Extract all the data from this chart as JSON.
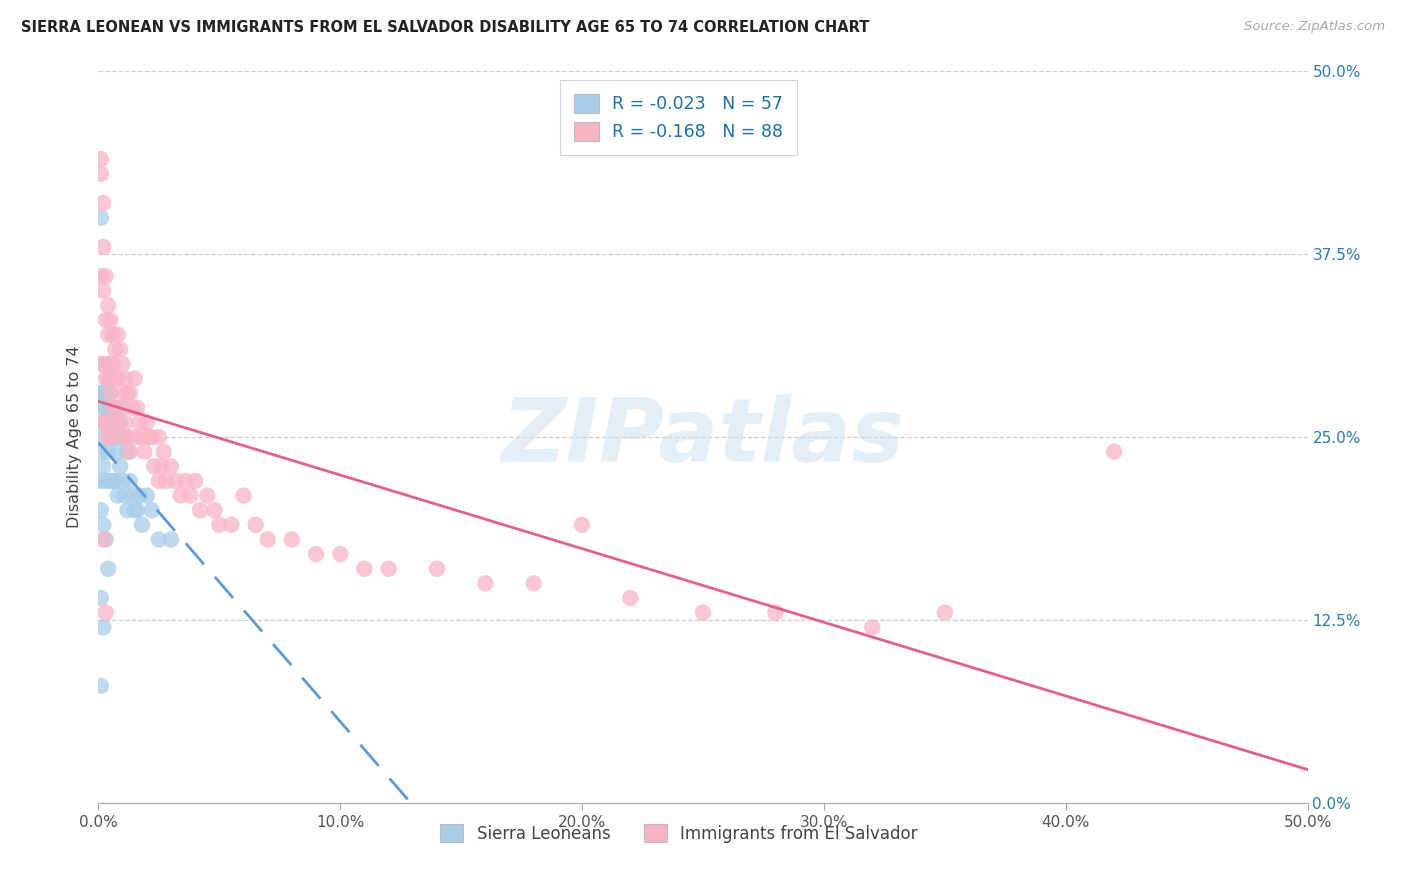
{
  "title": "SIERRA LEONEAN VS IMMIGRANTS FROM EL SALVADOR DISABILITY AGE 65 TO 74 CORRELATION CHART",
  "source": "Source: ZipAtlas.com",
  "ylabel": "Disability Age 65 to 74",
  "xlim": [
    0,
    0.5
  ],
  "ylim": [
    0,
    0.5
  ],
  "color_blue": "#a8cce8",
  "color_pink": "#f9b4c4",
  "color_blue_line": "#5b9bd5",
  "color_pink_line": "#e85d8a",
  "legend_r1": "-0.023",
  "legend_n1": "57",
  "legend_r2": "-0.168",
  "legend_n2": "88",
  "watermark": "ZIPatlas",
  "sl_x": [
    0.001,
    0.001,
    0.001,
    0.001,
    0.001,
    0.002,
    0.002,
    0.002,
    0.002,
    0.002,
    0.003,
    0.003,
    0.003,
    0.003,
    0.004,
    0.004,
    0.004,
    0.004,
    0.005,
    0.005,
    0.005,
    0.005,
    0.005,
    0.006,
    0.006,
    0.006,
    0.007,
    0.007,
    0.007,
    0.008,
    0.008,
    0.008,
    0.009,
    0.009,
    0.01,
    0.01,
    0.01,
    0.011,
    0.011,
    0.012,
    0.012,
    0.013,
    0.014,
    0.015,
    0.016,
    0.017,
    0.018,
    0.02,
    0.022,
    0.025,
    0.03,
    0.001,
    0.002,
    0.003,
    0.004,
    0.001,
    0.002
  ],
  "sl_y": [
    0.4,
    0.08,
    0.28,
    0.24,
    0.22,
    0.28,
    0.27,
    0.26,
    0.25,
    0.23,
    0.28,
    0.27,
    0.26,
    0.22,
    0.3,
    0.29,
    0.26,
    0.24,
    0.28,
    0.27,
    0.26,
    0.25,
    0.22,
    0.27,
    0.25,
    0.22,
    0.27,
    0.25,
    0.22,
    0.26,
    0.24,
    0.21,
    0.26,
    0.23,
    0.27,
    0.25,
    0.22,
    0.25,
    0.21,
    0.24,
    0.2,
    0.22,
    0.21,
    0.2,
    0.2,
    0.21,
    0.19,
    0.21,
    0.2,
    0.18,
    0.18,
    0.2,
    0.19,
    0.18,
    0.16,
    0.14,
    0.12
  ],
  "es_x": [
    0.001,
    0.001,
    0.001,
    0.001,
    0.002,
    0.002,
    0.002,
    0.002,
    0.002,
    0.003,
    0.003,
    0.003,
    0.003,
    0.004,
    0.004,
    0.004,
    0.004,
    0.005,
    0.005,
    0.005,
    0.005,
    0.006,
    0.006,
    0.006,
    0.007,
    0.007,
    0.007,
    0.008,
    0.008,
    0.008,
    0.009,
    0.009,
    0.01,
    0.01,
    0.01,
    0.011,
    0.011,
    0.012,
    0.012,
    0.013,
    0.013,
    0.014,
    0.015,
    0.015,
    0.016,
    0.017,
    0.018,
    0.019,
    0.02,
    0.021,
    0.022,
    0.023,
    0.025,
    0.025,
    0.026,
    0.027,
    0.028,
    0.03,
    0.032,
    0.034,
    0.036,
    0.038,
    0.04,
    0.042,
    0.045,
    0.048,
    0.05,
    0.055,
    0.06,
    0.065,
    0.07,
    0.08,
    0.09,
    0.1,
    0.11,
    0.12,
    0.14,
    0.16,
    0.18,
    0.2,
    0.22,
    0.25,
    0.28,
    0.32,
    0.35,
    0.42,
    0.002,
    0.003
  ],
  "es_y": [
    0.44,
    0.43,
    0.36,
    0.3,
    0.41,
    0.38,
    0.35,
    0.3,
    0.26,
    0.36,
    0.33,
    0.29,
    0.26,
    0.34,
    0.32,
    0.29,
    0.25,
    0.33,
    0.3,
    0.28,
    0.25,
    0.32,
    0.3,
    0.27,
    0.31,
    0.29,
    0.26,
    0.32,
    0.29,
    0.26,
    0.31,
    0.27,
    0.3,
    0.28,
    0.25,
    0.29,
    0.26,
    0.28,
    0.25,
    0.28,
    0.24,
    0.27,
    0.29,
    0.25,
    0.27,
    0.26,
    0.25,
    0.24,
    0.26,
    0.25,
    0.25,
    0.23,
    0.25,
    0.22,
    0.23,
    0.24,
    0.22,
    0.23,
    0.22,
    0.21,
    0.22,
    0.21,
    0.22,
    0.2,
    0.21,
    0.2,
    0.19,
    0.19,
    0.21,
    0.19,
    0.18,
    0.18,
    0.17,
    0.17,
    0.16,
    0.16,
    0.16,
    0.15,
    0.15,
    0.19,
    0.14,
    0.13,
    0.13,
    0.12,
    0.13,
    0.24,
    0.18,
    0.13
  ]
}
